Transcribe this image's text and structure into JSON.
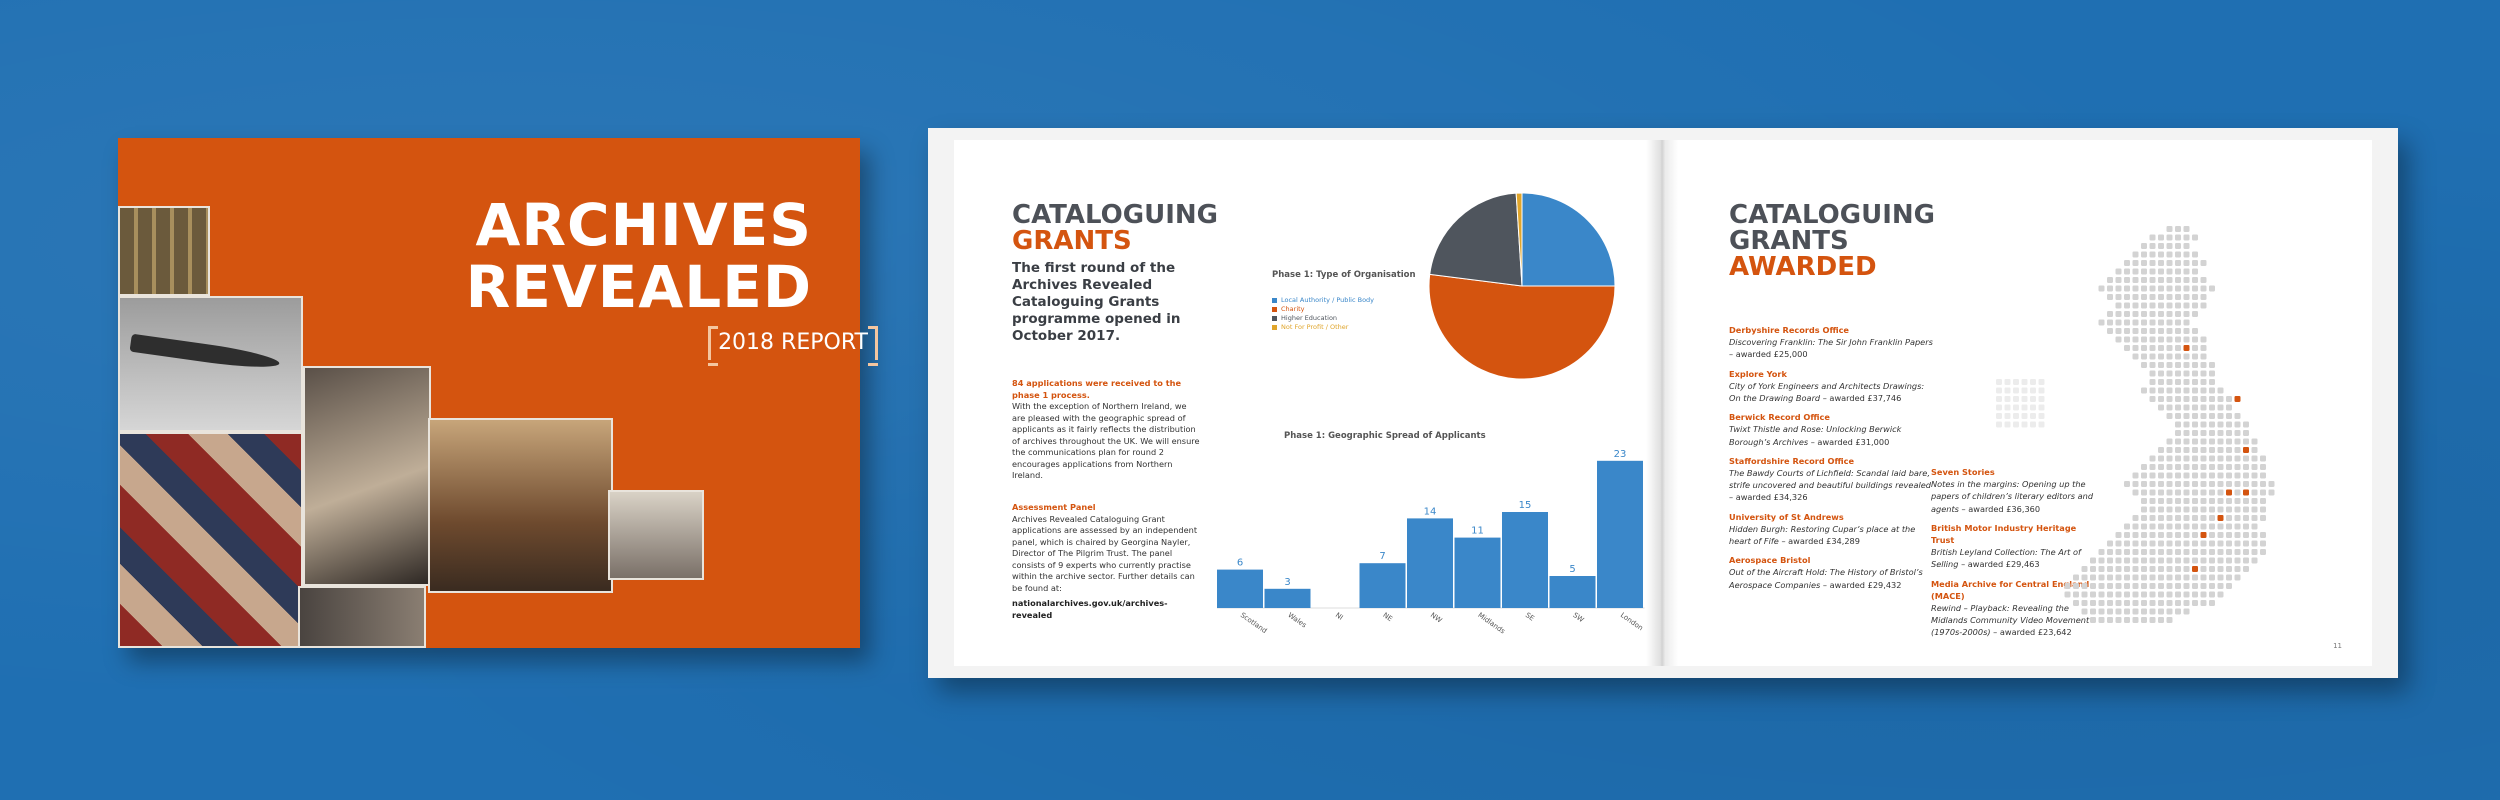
{
  "cover": {
    "title_line1": "ARCHIVES",
    "title_line2": "REVEALED",
    "subtitle": "2018 REPORT"
  },
  "colors": {
    "background_blue": "#1f6fb2",
    "brand_orange": "#d4540f",
    "heading_grey": "#4d5158",
    "chart_blue": "#3a87c9",
    "chart_orange": "#d4540f",
    "chart_grey": "#4f555d",
    "chart_gold": "#e0a52b"
  },
  "left_page": {
    "heading_line1": "CATALOGUING",
    "heading_line2": "GRANTS",
    "intro": "The first round of the Archives Revealed Cataloguing Grants programme opened in October 2017.",
    "applications_head": "84 applications were received to the phase 1 process.",
    "applications_body": "With the exception of Northern Ireland, we are pleased with the geographic spread of applicants as it fairly reflects the distribution of archives throughout the UK. We will ensure the communications plan for round 2 encourages applications from Northern Ireland.",
    "panel_head": "Assessment Panel",
    "panel_body": "Archives Revealed Cataloguing Grant applications are assessed by an independent panel, which is chaired by Georgina Nayler, Director of The Pilgrim Trust. The panel consists of 9 experts who currently practise within the archive sector. Further details can be found at:",
    "url": "nationalarchives.gov.uk/archives-revealed"
  },
  "chart_data": [
    {
      "type": "pie",
      "title": "Phase 1: Type of Organisation",
      "labels": [
        "Local Authority / Public Body",
        "Charity",
        "Higher Education",
        "Not For Profit / Other"
      ],
      "values": [
        25,
        52,
        22,
        1
      ],
      "colors": [
        "#3a87c9",
        "#d4540f",
        "#4f555d",
        "#e0a52b"
      ],
      "legend": "left"
    },
    {
      "type": "bar",
      "title": "Phase 1: Geographic Spread of Applicants",
      "categories": [
        "Scotland",
        "Wales",
        "NI",
        "NE",
        "NW",
        "Midlands",
        "SE",
        "SW",
        "London"
      ],
      "values": [
        6,
        3,
        0,
        7,
        14,
        11,
        15,
        5,
        23
      ],
      "ylim": [
        0,
        25
      ],
      "color": "#3a87c9",
      "grid": false
    }
  ],
  "right_page": {
    "heading_line1": "CATALOGUING",
    "heading_line2": "GRANTS",
    "heading_line3": "AWARDED",
    "page_number": "11",
    "awards_col1": [
      {
        "name": "Derbyshire Records Office",
        "desc": "Discovering Franklin: The Sir John Franklin Papers",
        "amount": "– awarded £25,000"
      },
      {
        "name": "Explore York",
        "desc": "City of York Engineers and Architects Drawings: On the Drawing Board",
        "amount": "– awarded £37,746"
      },
      {
        "name": "Berwick Record Office",
        "desc": "Twixt Thistle and Rose: Unlocking Berwick Borough’s Archives",
        "amount": "– awarded £31,000"
      },
      {
        "name": "Staffordshire Record Office",
        "desc": "The Bawdy Courts of Lichfield: Scandal laid bare, strife uncovered and beautiful buildings revealed",
        "amount": "– awarded £34,326"
      },
      {
        "name": "University of St Andrews",
        "desc": "Hidden Burgh: Restoring Cupar’s place at the heart of Fife",
        "amount": "– awarded £34,289"
      },
      {
        "name": "Aerospace Bristol",
        "desc": "Out of the Aircraft Hold: The History of Bristol’s Aerospace Companies",
        "amount": "– awarded £29,432"
      }
    ],
    "awards_col2": [
      {
        "name": "Seven Stories",
        "desc": "Notes in the margins: Opening up the papers of children’s literary editors and agents",
        "amount": "– awarded £36,360"
      },
      {
        "name": "British Motor Industry Heritage Trust",
        "desc": "British Leyland Collection: The Art of Selling",
        "amount": "– awarded £29,463"
      },
      {
        "name": "Media Archive for Central England (MACE)",
        "desc": "Rewind – Playback: Revealing the Midlands Community Video Movement (1970s-2000s)",
        "amount": "– awarded £23,642"
      }
    ]
  }
}
